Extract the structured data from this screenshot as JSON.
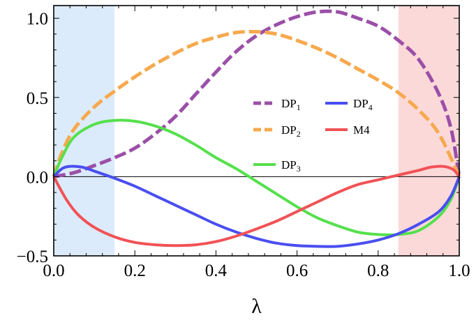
{
  "chart_data": {
    "type": "line",
    "title": "",
    "xlabel": "λ",
    "ylabel": "",
    "xlim": [
      0.0,
      1.0
    ],
    "ylim": [
      -0.5,
      1.08
    ],
    "x_ticks": [
      "0.0",
      "0.2",
      "0.4",
      "0.6",
      "0.8",
      "1.0"
    ],
    "x_tick_values": [
      0.0,
      0.2,
      0.4,
      0.6,
      0.8,
      1.0
    ],
    "y_ticks": [
      "−0.5",
      "0.0",
      "0.5",
      "1.0"
    ],
    "y_tick_values": [
      -0.5,
      0.0,
      0.5,
      1.0
    ],
    "grid": false,
    "zero_line": true,
    "shaded_regions": [
      {
        "x": [
          0.0,
          0.15
        ],
        "color": "#dcebfc"
      },
      {
        "x": [
          0.85,
          1.0
        ],
        "color": "#fcd9d9"
      }
    ],
    "legend_placement": "center-right",
    "legend": [
      {
        "key": "dp1",
        "base": "DP",
        "sub": "1"
      },
      {
        "key": "dp4",
        "base": "DP",
        "sub": "4"
      },
      {
        "key": "dp2",
        "base": "DP",
        "sub": "2"
      },
      {
        "key": "m4",
        "base": "M4",
        "sub": ""
      },
      {
        "key": "dp3",
        "base": "DP",
        "sub": "3"
      }
    ],
    "series": [
      {
        "key": "dp1",
        "name": "DP1",
        "color": "#9b4fa8",
        "dashed": true,
        "x": [
          0.0,
          0.05,
          0.1,
          0.15,
          0.2,
          0.25,
          0.3,
          0.35,
          0.4,
          0.45,
          0.5,
          0.55,
          0.6,
          0.65,
          0.7,
          0.75,
          0.8,
          0.85,
          0.9,
          0.95,
          0.98,
          1.0
        ],
        "y": [
          0.0,
          0.025,
          0.07,
          0.12,
          0.18,
          0.27,
          0.38,
          0.52,
          0.66,
          0.79,
          0.89,
          0.96,
          1.01,
          1.04,
          1.04,
          1.0,
          0.95,
          0.86,
          0.74,
          0.52,
          0.3,
          0.0
        ]
      },
      {
        "key": "dp2",
        "name": "DP2",
        "color": "#f7a94e",
        "dashed": true,
        "x": [
          0.0,
          0.02,
          0.05,
          0.1,
          0.15,
          0.2,
          0.25,
          0.3,
          0.35,
          0.4,
          0.45,
          0.5,
          0.55,
          0.6,
          0.65,
          0.7,
          0.75,
          0.8,
          0.85,
          0.9,
          0.95,
          1.0
        ],
        "y": [
          0.0,
          0.15,
          0.3,
          0.44,
          0.54,
          0.63,
          0.71,
          0.78,
          0.84,
          0.88,
          0.91,
          0.915,
          0.9,
          0.86,
          0.81,
          0.75,
          0.68,
          0.61,
          0.53,
          0.42,
          0.27,
          0.0
        ]
      },
      {
        "key": "dp3",
        "name": "DP3",
        "color": "#55e04c",
        "dashed": false,
        "x": [
          0.0,
          0.02,
          0.05,
          0.1,
          0.15,
          0.2,
          0.25,
          0.3,
          0.35,
          0.4,
          0.45,
          0.5,
          0.55,
          0.6,
          0.65,
          0.7,
          0.75,
          0.8,
          0.85,
          0.9,
          0.95,
          0.98,
          1.0
        ],
        "y": [
          0.0,
          0.12,
          0.25,
          0.33,
          0.355,
          0.35,
          0.32,
          0.27,
          0.2,
          0.12,
          0.05,
          -0.03,
          -0.11,
          -0.19,
          -0.26,
          -0.31,
          -0.35,
          -0.365,
          -0.365,
          -0.34,
          -0.25,
          -0.14,
          0.0
        ]
      },
      {
        "key": "dp4",
        "name": "DP4",
        "color": "#4a4ef0",
        "dashed": false,
        "x": [
          0.0,
          0.02,
          0.04,
          0.07,
          0.1,
          0.15,
          0.2,
          0.25,
          0.3,
          0.35,
          0.4,
          0.45,
          0.5,
          0.55,
          0.6,
          0.65,
          0.7,
          0.75,
          0.8,
          0.85,
          0.9,
          0.95,
          0.98,
          1.0
        ],
        "y": [
          0.0,
          0.05,
          0.065,
          0.06,
          0.035,
          -0.01,
          -0.06,
          -0.12,
          -0.18,
          -0.24,
          -0.3,
          -0.35,
          -0.39,
          -0.42,
          -0.435,
          -0.44,
          -0.44,
          -0.425,
          -0.4,
          -0.36,
          -0.3,
          -0.22,
          -0.12,
          0.0
        ]
      },
      {
        "key": "m4",
        "name": "M4",
        "color": "#f15256",
        "dashed": false,
        "x": [
          0.0,
          0.03,
          0.06,
          0.1,
          0.15,
          0.2,
          0.25,
          0.3,
          0.35,
          0.4,
          0.45,
          0.5,
          0.55,
          0.6,
          0.65,
          0.7,
          0.75,
          0.8,
          0.85,
          0.9,
          0.93,
          0.96,
          0.985,
          1.0
        ],
        "y": [
          0.0,
          -0.14,
          -0.24,
          -0.32,
          -0.38,
          -0.415,
          -0.43,
          -0.435,
          -0.43,
          -0.41,
          -0.375,
          -0.33,
          -0.28,
          -0.22,
          -0.16,
          -0.1,
          -0.05,
          -0.02,
          0.01,
          0.04,
          0.06,
          0.065,
          0.045,
          0.0
        ]
      }
    ]
  }
}
